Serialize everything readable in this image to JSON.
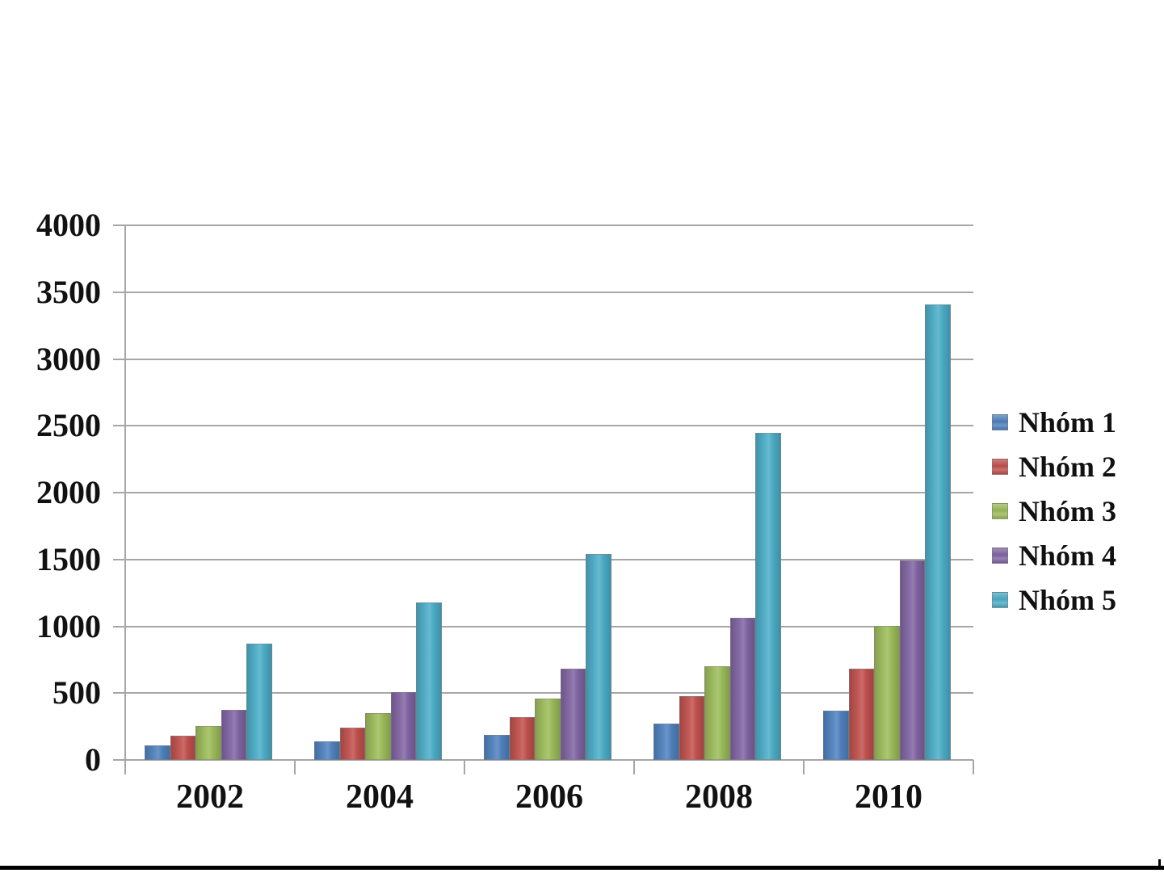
{
  "chart_data": {
    "type": "bar",
    "title": "",
    "xlabel": "",
    "ylabel": "",
    "categories": [
      "2002",
      "2004",
      "2006",
      "2008",
      "2010"
    ],
    "series": [
      {
        "name": "Nhóm 1",
        "color": "#4F81BD",
        "values": [
          110,
          140,
          190,
          270,
          370
        ]
      },
      {
        "name": "Nhóm 2",
        "color": "#C0504D",
        "values": [
          180,
          240,
          320,
          480,
          680
        ]
      },
      {
        "name": "Nhóm 3",
        "color": "#9BBB59",
        "values": [
          255,
          350,
          460,
          700,
          1000
        ]
      },
      {
        "name": "Nhóm 4",
        "color": "#8064A2",
        "values": [
          375,
          510,
          680,
          1065,
          1495
        ]
      },
      {
        "name": "Nhóm 5",
        "color": "#4BACC6",
        "values": [
          870,
          1180,
          1540,
          2445,
          3410
        ]
      }
    ],
    "ylim": [
      0,
      4000
    ],
    "ytick_step": 500,
    "yticks": [
      "0",
      "500",
      "1000",
      "1500",
      "2000",
      "2500",
      "3000",
      "3500",
      "4000"
    ],
    "grid": true,
    "legend_position": "right"
  },
  "colors": {
    "gridline": "#a6a6a6",
    "axis": "#a6a6a6",
    "label_text": "#111111",
    "footer_line": "#000000"
  }
}
